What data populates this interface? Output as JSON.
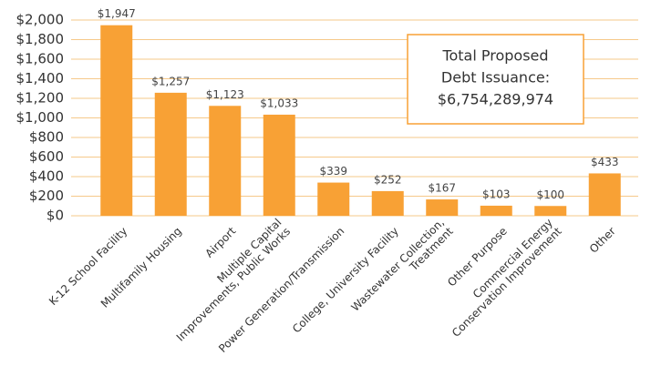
{
  "chart_data": {
    "type": "bar",
    "categories": [
      "K-12 School Facility",
      "Multifamily Housing",
      "Airport",
      "Multiple Capital\nImprovements, Public Works",
      "Power Generation/Transmission",
      "College, University Facility",
      "Wastewater Collection,\nTreatment",
      "Other Purpose",
      "Commercial Energy\nConservation Improvement",
      "Other"
    ],
    "values": [
      1947,
      1257,
      1123,
      1033,
      339,
      252,
      167,
      103,
      100,
      433
    ],
    "value_labels": [
      "$1,947",
      "$1,257",
      "$1,123",
      "$1,033",
      "$339",
      "$252",
      "$167",
      "$103",
      "$100",
      "$433"
    ],
    "color": "#f8a135",
    "ylim": [
      0,
      2000
    ],
    "yticks": [
      {
        "value": 0,
        "label": "$0"
      },
      {
        "value": 200,
        "label": "$200"
      },
      {
        "value": 400,
        "label": "$400"
      },
      {
        "value": 600,
        "label": "$600"
      },
      {
        "value": 800,
        "label": "$800"
      },
      {
        "value": 1000,
        "label": "$1,000"
      },
      {
        "value": 1200,
        "label": "$1,200"
      },
      {
        "value": 1400,
        "label": "$1,400"
      },
      {
        "value": 1600,
        "label": "$1,600"
      },
      {
        "value": 1800,
        "label": "$1,800"
      },
      {
        "value": 2000,
        "label": "$2,000"
      }
    ],
    "grid": true,
    "annotation": [
      "Total Proposed",
      "Debt Issuance:",
      "$6,754,289,974"
    ]
  }
}
